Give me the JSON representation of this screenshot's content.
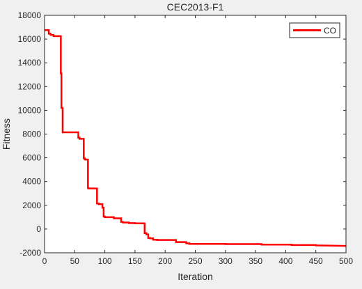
{
  "chart_data": {
    "type": "line",
    "title": "CEC2013-F1",
    "xlabel": "Iteration",
    "ylabel": "Fitness",
    "xlim": [
      0,
      500
    ],
    "ylim": [
      -2000,
      18000
    ],
    "xticks": [
      0,
      50,
      100,
      150,
      200,
      250,
      300,
      350,
      400,
      450,
      500
    ],
    "yticks": [
      -2000,
      0,
      2000,
      4000,
      6000,
      8000,
      10000,
      12000,
      14000,
      16000,
      18000
    ],
    "grid": false,
    "legend_position": "top-right",
    "series": [
      {
        "name": "CO",
        "color": "#ff0000",
        "x": [
          0,
          7,
          7,
          10,
          10,
          15,
          15,
          27,
          27,
          28,
          28,
          30,
          30,
          56,
          56,
          58,
          58,
          65,
          65,
          67,
          67,
          72,
          72,
          73,
          73,
          87,
          87,
          90,
          90,
          96,
          96,
          98,
          98,
          100,
          100,
          115,
          115,
          127,
          127,
          130,
          130,
          140,
          140,
          150,
          150,
          166,
          166,
          169,
          169,
          172,
          172,
          175,
          175,
          180,
          180,
          187,
          187,
          218,
          218,
          235,
          235,
          240,
          240,
          300,
          300,
          360,
          360,
          410,
          410,
          450,
          450,
          500
        ],
        "y": [
          16750,
          16750,
          16450,
          16450,
          16350,
          16350,
          16250,
          16250,
          13100,
          13100,
          10200,
          10200,
          8150,
          8150,
          7700,
          7700,
          7600,
          7600,
          5950,
          5950,
          5850,
          5850,
          3450,
          3450,
          3420,
          3420,
          2150,
          2150,
          2100,
          2100,
          1800,
          1800,
          1050,
          1050,
          1000,
          1000,
          900,
          900,
          600,
          600,
          550,
          550,
          500,
          500,
          480,
          480,
          -350,
          -350,
          -450,
          -450,
          -750,
          -750,
          -780,
          -780,
          -900,
          -900,
          -920,
          -920,
          -1100,
          -1100,
          -1200,
          -1200,
          -1250,
          -1250,
          -1270,
          -1270,
          -1310,
          -1310,
          -1350,
          -1350,
          -1380,
          -1420
        ]
      }
    ]
  }
}
